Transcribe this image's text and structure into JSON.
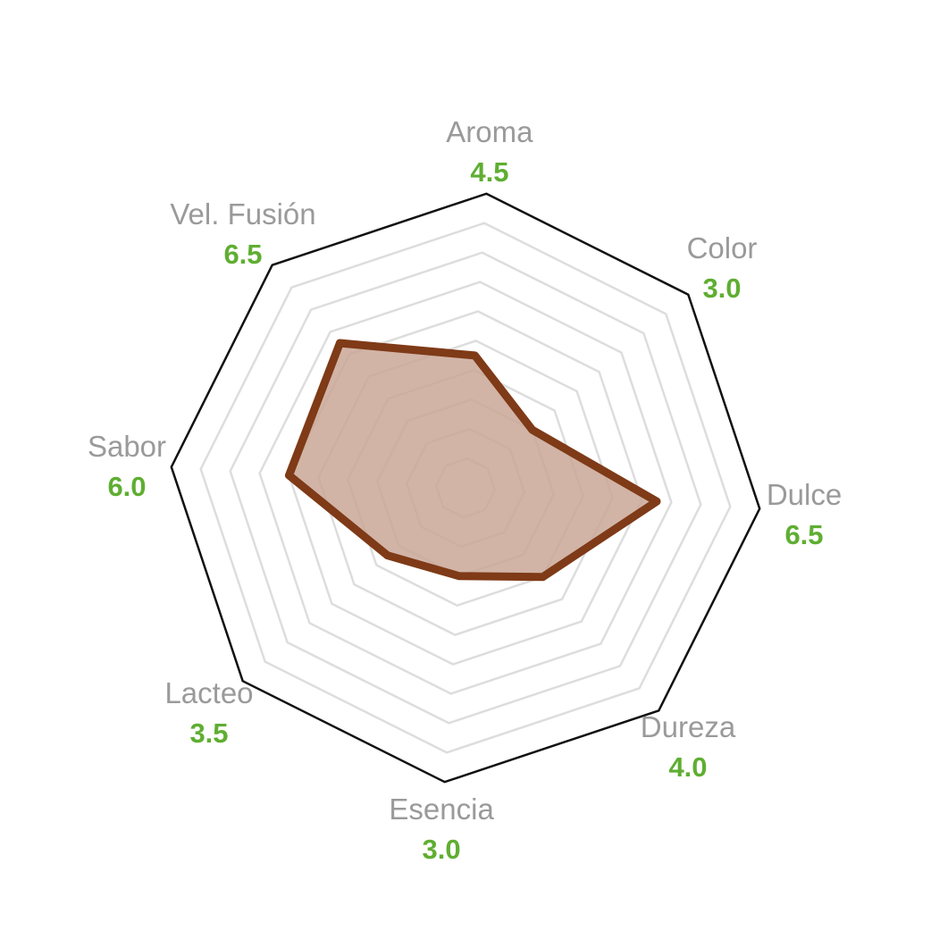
{
  "chart_data": {
    "type": "radar",
    "max_value": 10,
    "rings": 10,
    "axes": [
      {
        "label": "Aroma",
        "value_label": "4.5",
        "value": 4.5
      },
      {
        "label": "Color",
        "value_label": "3.0",
        "value": 3.0
      },
      {
        "label": "Dulce",
        "value_label": "6.5",
        "value": 6.5
      },
      {
        "label": "Dureza",
        "value_label": "4.0",
        "value": 4.0
      },
      {
        "label": "Esencia",
        "value_label": "3.0",
        "value": 3.0
      },
      {
        "label": "Lacteo",
        "value_label": "3.5",
        "value": 3.5
      },
      {
        "label": "Sabor",
        "value_label": "6.0",
        "value": 6.0
      },
      {
        "label": "Vel. Fusión",
        "value_label": "6.5",
        "value": 6.5
      }
    ],
    "colors": {
      "frame": "#111111",
      "grid": "#dddddd",
      "area_fill": "#c9a797",
      "area_stroke": "#7f3a17",
      "label": "#9a9a9a",
      "value": "#5fae32"
    }
  }
}
